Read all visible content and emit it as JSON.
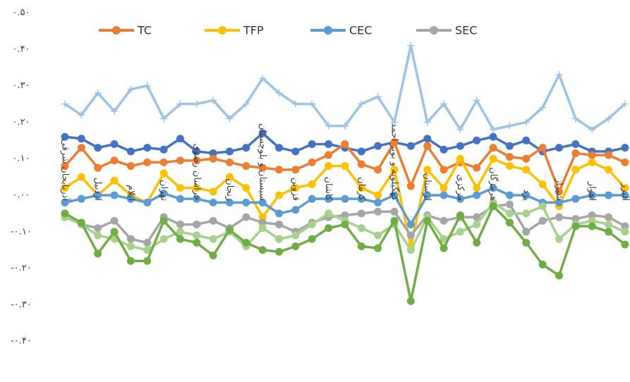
{
  "chart_data": {
    "type": "line",
    "categories": [
      "آذربایجان شرقی",
      null,
      "اردبیل",
      null,
      "ایلام",
      null,
      "تهران",
      null,
      "خراسان رضوی",
      null,
      "زنجان",
      null,
      "سیستان و بلوچستان",
      null,
      "قزوین",
      null,
      "کاشان",
      null,
      "کرمان",
      null,
      "کهگیلویه و بویر احمد",
      null,
      "لرستان",
      null,
      "مرکزی",
      null,
      "هرمزگان",
      null,
      "یزد",
      null,
      "شیراز",
      null,
      "اهواز",
      null,
      "البرز"
    ],
    "ylim": [
      -0.5,
      0.5
    ],
    "yticks": [
      {
        "value": 0.5,
        "label": "۰.۵۰"
      },
      {
        "value": 0.4,
        "label": "۰.۴۰"
      },
      {
        "value": 0.3,
        "label": "۰.۳۰"
      },
      {
        "value": 0.2,
        "label": "۰.۲۰"
      },
      {
        "value": 0.1,
        "label": "۰.۱۰"
      },
      {
        "value": 0,
        "label": "۰.۰۰"
      },
      {
        "value": -0.1,
        "label": "-۰.۱۰"
      },
      {
        "value": -0.2,
        "label": "-۰.۲۰"
      },
      {
        "value": -0.3,
        "label": "-۰.۳۰"
      },
      {
        "value": -0.4,
        "label": "-۰.۴۰"
      }
    ],
    "legend": "top",
    "series": [
      {
        "color": "#9dc3e6",
        "marker": "plus",
        "values": [
          0.25,
          0.22,
          0.28,
          0.23,
          0.29,
          0.3,
          0.21,
          0.25,
          0.25,
          0.26,
          0.21,
          0.25,
          0.32,
          0.28,
          0.25,
          0.25,
          0.19,
          0.19,
          0.25,
          0.27,
          0.2,
          0.41,
          0.2,
          0.25,
          0.18,
          0.26,
          0.18,
          0.19,
          0.2,
          0.24,
          0.33,
          0.21,
          0.18,
          0.21,
          0.25
        ]
      },
      {
        "color": "#4472c4",
        "marker": "circle",
        "values": [
          0.16,
          0.155,
          0.13,
          0.14,
          0.12,
          0.13,
          0.125,
          0.155,
          0.12,
          0.115,
          0.12,
          0.13,
          0.17,
          0.13,
          0.12,
          0.14,
          0.14,
          0.13,
          0.12,
          0.135,
          0.145,
          0.135,
          0.155,
          0.125,
          0.135,
          0.15,
          0.16,
          0.135,
          0.15,
          0.12,
          0.13,
          0.14,
          0.12,
          0.12,
          0.13
        ]
      },
      {
        "name": "TC",
        "color": "#ed7d31",
        "marker": "circle",
        "values": [
          0.08,
          0.13,
          0.075,
          0.095,
          0.08,
          0.09,
          0.09,
          0.095,
          0.095,
          0.1,
          0.09,
          0.08,
          0.075,
          0.07,
          0.07,
          0.09,
          0.11,
          0.14,
          0.085,
          0.07,
          0.145,
          0.025,
          0.135,
          0.07,
          0.09,
          0.075,
          0.13,
          0.105,
          0.1,
          0.13,
          0.01,
          0.115,
          0.11,
          0.11,
          0.09
        ]
      },
      {
        "name": "TFP",
        "color": "#ffc000",
        "marker": "circle",
        "values": [
          0.02,
          0.05,
          0.0,
          0.04,
          0.0,
          -0.02,
          0.06,
          0.02,
          0.02,
          0.01,
          0.05,
          0.02,
          -0.06,
          0.0,
          0.02,
          0.03,
          0.08,
          0.08,
          0.02,
          0.0,
          0.07,
          -0.14,
          0.07,
          0.02,
          0.1,
          0.02,
          0.1,
          0.08,
          0.07,
          0.03,
          -0.03,
          0.07,
          0.09,
          0.07,
          0.02
        ]
      },
      {
        "name": "CEC",
        "color": "#5b9bd5",
        "marker": "circle",
        "values": [
          -0.02,
          -0.01,
          0.0,
          0.0,
          -0.01,
          -0.02,
          0.005,
          -0.01,
          -0.01,
          -0.02,
          -0.02,
          -0.02,
          -0.02,
          -0.05,
          -0.04,
          -0.01,
          -0.01,
          -0.01,
          -0.01,
          -0.02,
          0.0,
          -0.08,
          0.0,
          0.0,
          -0.01,
          0.0,
          0.02,
          0.0,
          0.0,
          -0.02,
          -0.02,
          -0.01,
          0.0,
          0.0,
          0.0
        ]
      },
      {
        "name": "SEC",
        "color": "#a5a5a5",
        "marker": "circle",
        "values": [
          -0.06,
          -0.08,
          -0.09,
          -0.07,
          -0.12,
          -0.13,
          -0.06,
          -0.08,
          -0.08,
          -0.07,
          -0.09,
          -0.06,
          -0.075,
          -0.08,
          -0.1,
          -0.075,
          -0.06,
          -0.055,
          -0.05,
          -0.045,
          -0.045,
          -0.11,
          -0.055,
          -0.07,
          -0.06,
          -0.06,
          -0.03,
          -0.025,
          -0.1,
          -0.07,
          -0.06,
          -0.065,
          -0.055,
          -0.06,
          -0.085
        ]
      },
      {
        "color": "#a9d18e",
        "marker": "circle",
        "values": [
          -0.06,
          -0.08,
          -0.11,
          -0.12,
          -0.14,
          -0.15,
          -0.12,
          -0.1,
          -0.11,
          -0.12,
          -0.1,
          -0.14,
          -0.09,
          -0.12,
          -0.11,
          -0.08,
          -0.05,
          -0.07,
          -0.09,
          -0.11,
          -0.08,
          -0.15,
          -0.06,
          -0.12,
          -0.1,
          -0.08,
          -0.02,
          -0.05,
          -0.05,
          -0.03,
          -0.12,
          -0.08,
          -0.07,
          -0.08,
          -0.1
        ]
      },
      {
        "color": "#70ad47",
        "marker": "circle",
        "values": [
          -0.05,
          -0.075,
          -0.16,
          -0.1,
          -0.18,
          -0.18,
          -0.07,
          -0.12,
          -0.13,
          -0.165,
          -0.095,
          -0.13,
          -0.15,
          -0.155,
          -0.14,
          -0.12,
          -0.09,
          -0.08,
          -0.14,
          -0.145,
          -0.07,
          -0.29,
          -0.07,
          -0.145,
          -0.055,
          -0.13,
          -0.03,
          -0.075,
          -0.13,
          -0.19,
          -0.22,
          -0.085,
          -0.085,
          -0.1,
          -0.135
        ]
      }
    ]
  }
}
